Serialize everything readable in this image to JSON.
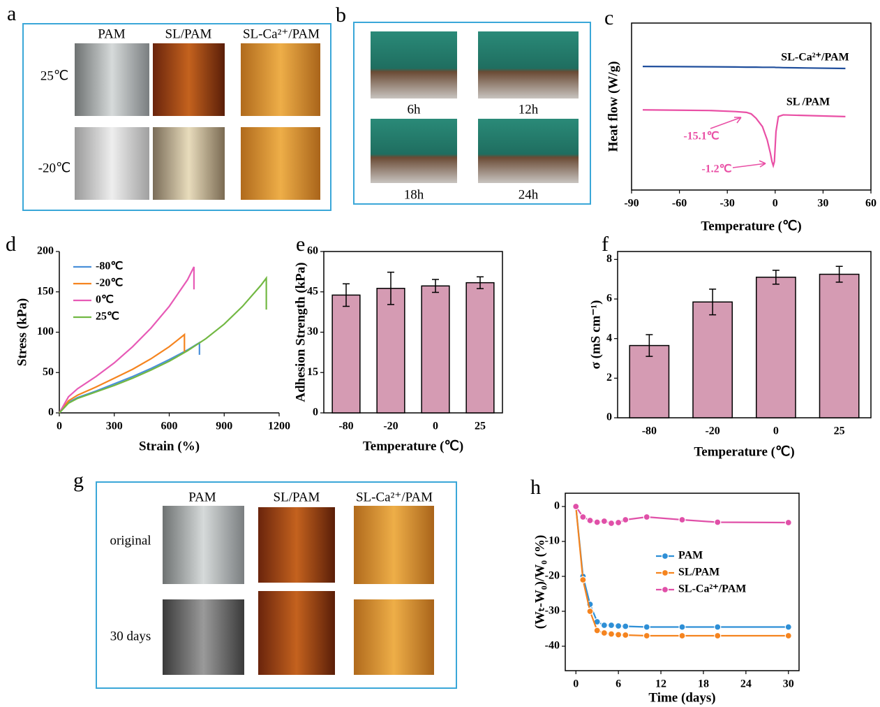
{
  "panel_labels": [
    "a",
    "b",
    "c",
    "d",
    "e",
    "f",
    "g",
    "h"
  ],
  "panel_a": {
    "columns": [
      "PAM",
      "SL/PAM",
      "SL-Ca²⁺/PAM"
    ],
    "rows": [
      "25℃",
      "-20℃"
    ]
  },
  "panel_b": {
    "captions": [
      "6h",
      "12h",
      "18h",
      "24h"
    ]
  },
  "panel_g": {
    "columns": [
      "PAM",
      "SL/PAM",
      "SL-Ca²⁺/PAM"
    ],
    "rows": [
      "original",
      "30 days"
    ]
  },
  "chart_data": [
    {
      "type": "line",
      "xlabel": "Temperature (℃)",
      "ylabel": "Heat flow (W/g)",
      "xlim": [
        -90,
        60
      ],
      "xticks": [
        -90,
        -60,
        -30,
        0,
        30,
        60
      ],
      "ylim": [
        0,
        1
      ],
      "x": [
        -83,
        -60,
        -40,
        -25,
        -18,
        -15,
        -12,
        -8,
        -5,
        -3,
        -2,
        -1.2,
        -0.5,
        0.5,
        2,
        5,
        20,
        44
      ],
      "series": [
        {
          "name": "SL-Ca²⁺/PAM",
          "color": "#1f4e9c",
          "values": [
            0.74,
            0.739,
            0.738,
            0.737,
            0.736,
            0.736,
            0.736,
            0.735,
            0.735,
            0.735,
            0.735,
            0.735,
            0.735,
            0.734,
            0.734,
            0.733,
            0.731,
            0.728
          ]
        },
        {
          "name": "SL /PAM",
          "color": "#e94fa5",
          "values": [
            0.48,
            0.478,
            0.476,
            0.47,
            0.465,
            0.456,
            0.43,
            0.38,
            0.3,
            0.22,
            0.17,
            0.146,
            0.17,
            0.35,
            0.44,
            0.45,
            0.446,
            0.44
          ]
        }
      ],
      "annotations": [
        "-15.1℃",
        "-1.2℃"
      ]
    },
    {
      "type": "line",
      "xlabel": "Strain (%)",
      "ylabel": "Stress (kPa)",
      "xlim": [
        0,
        1200
      ],
      "xticks": [
        0,
        300,
        600,
        900,
        1200
      ],
      "ylim": [
        0,
        200
      ],
      "yticks": [
        0,
        50,
        100,
        150,
        200
      ],
      "legend": "upper left",
      "series": [
        {
          "name": "-80℃",
          "color": "#4a90d9",
          "x": [
            0,
            50,
            100,
            200,
            300,
            400,
            500,
            600,
            700,
            765,
            765
          ],
          "values": [
            0,
            13,
            19,
            27,
            36,
            45,
            55,
            66,
            78,
            87,
            72
          ]
        },
        {
          "name": "-20℃",
          "color": "#f5841f",
          "x": [
            0,
            50,
            100,
            200,
            300,
            400,
            500,
            600,
            683,
            683
          ],
          "values": [
            0,
            15,
            22,
            32,
            43,
            54,
            67,
            82,
            97,
            75
          ]
        },
        {
          "name": "0℃",
          "color": "#e75ab6",
          "x": [
            0,
            50,
            100,
            200,
            300,
            400,
            500,
            600,
            700,
            735,
            735
          ],
          "values": [
            0,
            20,
            30,
            45,
            62,
            82,
            105,
            132,
            165,
            181,
            153
          ]
        },
        {
          "name": "25℃",
          "color": "#72b843",
          "x": [
            0,
            50,
            100,
            200,
            300,
            400,
            500,
            600,
            700,
            800,
            900,
            1000,
            1100,
            1130,
            1130
          ],
          "values": [
            0,
            12,
            18,
            26,
            34,
            43,
            53,
            64,
            77,
            92,
            110,
            132,
            158,
            167,
            128
          ]
        }
      ]
    },
    {
      "type": "bar",
      "xlabel": "Temperature (℃)",
      "ylabel": "Adhesion Strength (kPa)",
      "categories": [
        "-80",
        "-20",
        "0",
        "25"
      ],
      "values": [
        43.8,
        46.3,
        47.2,
        48.4
      ],
      "errors": [
        4.2,
        6,
        2.4,
        2.2
      ],
      "color": "#d59bb3",
      "ylim": [
        0,
        60
      ],
      "yticks": [
        0,
        15,
        30,
        45,
        60
      ]
    },
    {
      "type": "bar",
      "xlabel": "Temperature (℃)",
      "ylabel": "σ (mS cm⁻¹)",
      "categories": [
        "-80",
        "-20",
        "0",
        "25"
      ],
      "values": [
        3.65,
        5.85,
        7.1,
        7.25
      ],
      "errors": [
        0.55,
        0.65,
        0.35,
        0.4
      ],
      "color": "#d59bb3",
      "ylim": [
        0,
        8.4
      ],
      "yticks": [
        0,
        2,
        4,
        6,
        8
      ]
    },
    {
      "type": "line",
      "markers": true,
      "xlabel": "Time (days)",
      "ylabel": "(Wₜ-W₀)/W₀ (%)",
      "xlim": [
        -1.5,
        31.5
      ],
      "xticks": [
        0,
        6,
        12,
        18,
        24,
        30
      ],
      "ylim": [
        -47,
        3.8
      ],
      "yticks": [
        0,
        -10,
        -20,
        -30,
        -40
      ],
      "legend": "center",
      "x": [
        0,
        1,
        2,
        3,
        4,
        5,
        6,
        7,
        10,
        15,
        20,
        30
      ],
      "series": [
        {
          "name": "PAM",
          "color": "#2e8fd6",
          "values": [
            0,
            -20,
            -28,
            -33,
            -34,
            -34,
            -34.2,
            -34.3,
            -34.5,
            -34.5,
            -34.5,
            -34.5
          ]
        },
        {
          "name": "SL/PAM",
          "color": "#f5841f",
          "values": [
            0,
            -21,
            -30,
            -35.5,
            -36.2,
            -36.5,
            -36.7,
            -36.8,
            -37,
            -37,
            -37,
            -37
          ]
        },
        {
          "name": "SL-Ca²⁺/PAM",
          "color": "#e050a8",
          "values": [
            0,
            -3,
            -4,
            -4.5,
            -4.2,
            -4.8,
            -4.6,
            -3.8,
            -3,
            -3.8,
            -4.5,
            -4.6
          ]
        }
      ]
    }
  ]
}
